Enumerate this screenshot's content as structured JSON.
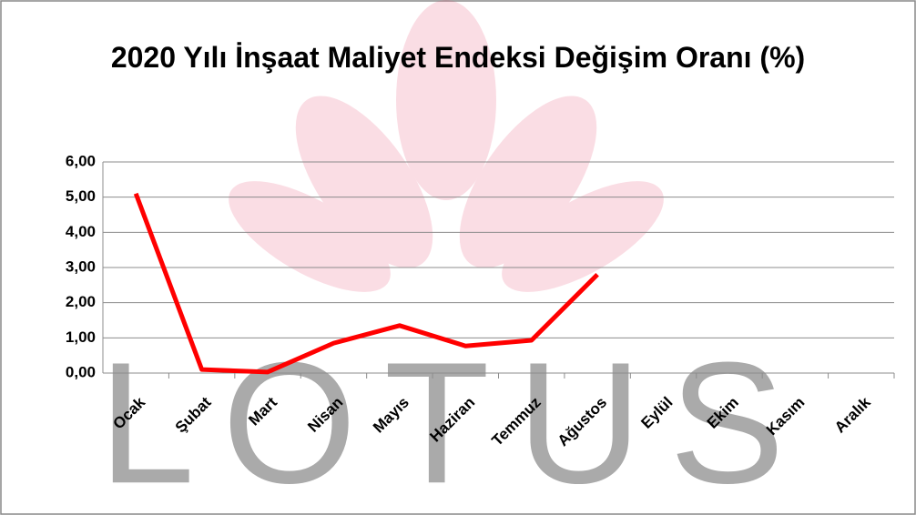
{
  "chart_data": {
    "type": "line",
    "title": "2020 Yılı İnşaat Maliyet Endeksi Değişim Oranı (%)",
    "watermark": "LOTUS",
    "categories": [
      "Ocak",
      "Şubat",
      "Mart",
      "Nisan",
      "Mayıs",
      "Haziran",
      "Temmuz",
      "Ağustos",
      "Eylül",
      "Ekim",
      "Kasım",
      "Aralık"
    ],
    "series": [
      {
        "color": "#ff0000",
        "values": [
          5.1,
          0.1,
          0.03,
          0.85,
          1.35,
          0.77,
          0.93,
          2.8,
          null,
          null,
          null,
          null
        ]
      }
    ],
    "ylim": [
      0,
      6
    ],
    "yticks": [
      {
        "value": 0,
        "label": "0,00"
      },
      {
        "value": 1,
        "label": "1,00"
      },
      {
        "value": 2,
        "label": "2,00"
      },
      {
        "value": 3,
        "label": "3,00"
      },
      {
        "value": 4,
        "label": "4,00"
      },
      {
        "value": 5,
        "label": "5,00"
      },
      {
        "value": 6,
        "label": "6,00"
      }
    ],
    "grid": true
  }
}
